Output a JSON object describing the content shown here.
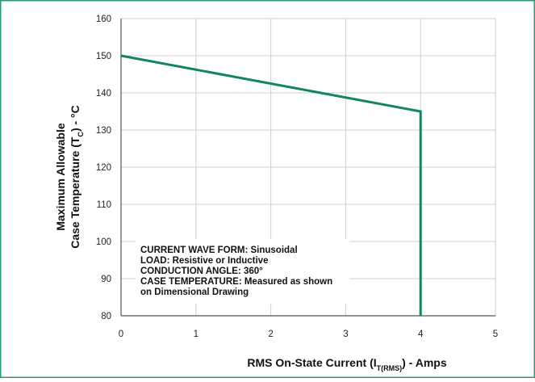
{
  "chart_data": {
    "type": "line",
    "series": [
      {
        "x": [
          0,
          4,
          4
        ],
        "y": [
          150,
          135,
          80
        ]
      }
    ],
    "xlabel": {
      "main": "RMS On-State Current (I",
      "subscript": "T(RMS)",
      "suffix": ") - Amps"
    },
    "ylabel": {
      "line1": "Maximum Allowable",
      "line2_main": "Case Temperature (T",
      "line2_subscript": "C",
      "line2_suffix": ") - °C"
    },
    "xlim": [
      0,
      5
    ],
    "ylim": [
      80,
      160
    ],
    "x_ticks": [
      "0",
      "1",
      "2",
      "3",
      "4",
      "5"
    ],
    "y_ticks": [
      "160",
      "150",
      "140",
      "130",
      "120",
      "110",
      "100",
      "90",
      "80"
    ],
    "grid": true,
    "annotation": [
      "CURRENT WAVE FORM: Sinusoidal",
      "LOAD: Resistive or Inductive",
      "CONDUCTION ANGLE: 360°",
      "CASE TEMPERATURE: Measured as shown",
      "on Dimensional Drawing"
    ],
    "colors": {
      "line": "#13875a",
      "frame": "#2e9a6e",
      "grid": "#cfcfcf",
      "axis": "#555555"
    }
  }
}
